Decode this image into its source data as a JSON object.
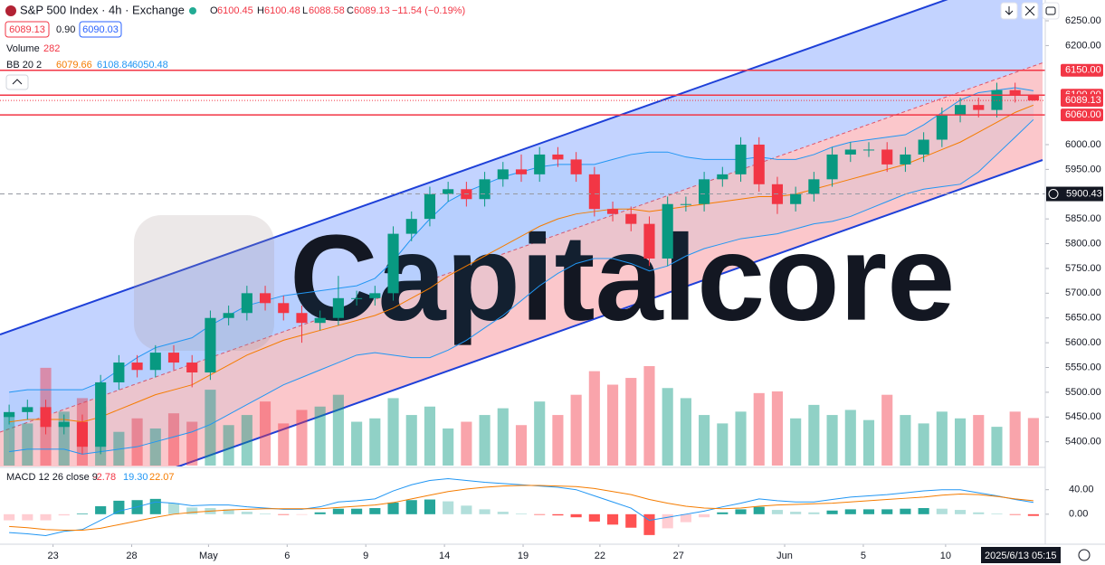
{
  "header": {
    "symbol": "S&P 500 Index · 4h · Exchange",
    "ohlc_labels": [
      "O",
      "H",
      "L",
      "C"
    ],
    "change": "−11.54 (−0.19%)",
    "spread": "0.90",
    "buy": "6090.03"
  },
  "chart_data": [
    {
      "type": "candlestick",
      "watermark": "Capitalcore",
      "up_color": "#089981",
      "down_color": "#f23645",
      "open": [
        5450,
        5460,
        5470,
        5430,
        5440,
        5390,
        5520,
        5560,
        5545,
        5580,
        5560,
        5540,
        5650,
        5660,
        5700,
        5680,
        5660,
        5640,
        5650,
        5690,
        5690,
        5700,
        5820,
        5850,
        5900,
        5910,
        5890,
        5930,
        5950,
        5940,
        5980,
        5970,
        5940,
        5870,
        5860,
        5840,
        5770,
        5880,
        5880,
        5930,
        5940,
        6000,
        5920,
        5880,
        5900,
        5930,
        5980,
        5990,
        5990,
        5960,
        5980,
        6010,
        6060,
        6080,
        6070,
        6110,
        6100.45
      ],
      "high": [
        5475,
        5485,
        5485,
        5455,
        5455,
        5535,
        5575,
        5575,
        5595,
        5595,
        5575,
        5665,
        5675,
        5715,
        5715,
        5695,
        5675,
        5665,
        5735,
        5705,
        5715,
        5835,
        5865,
        5915,
        5925,
        5925,
        5945,
        5965,
        5980,
        5995,
        5995,
        5985,
        5955,
        5885,
        5875,
        5855,
        5895,
        5895,
        5945,
        5955,
        6015,
        6015,
        5935,
        5915,
        5945,
        5995,
        6005,
        6005,
        6005,
        5995,
        6025,
        6075,
        6095,
        6095,
        6125,
        6125,
        6100.48
      ],
      "low": [
        5435,
        5445,
        5415,
        5415,
        5375,
        5375,
        5505,
        5530,
        5530,
        5545,
        5510,
        5525,
        5635,
        5645,
        5665,
        5645,
        5600,
        5625,
        5635,
        5675,
        5675,
        5685,
        5805,
        5835,
        5885,
        5875,
        5875,
        5915,
        5925,
        5925,
        5955,
        5925,
        5855,
        5845,
        5825,
        5755,
        5755,
        5865,
        5865,
        5915,
        5925,
        5905,
        5860,
        5865,
        5885,
        5915,
        5965,
        5975,
        5945,
        5945,
        5965,
        5995,
        6045,
        6055,
        6055,
        6085,
        6088.58
      ],
      "close": [
        5460,
        5470,
        5430,
        5440,
        5390,
        5520,
        5560,
        5545,
        5580,
        5560,
        5540,
        5650,
        5660,
        5700,
        5680,
        5660,
        5640,
        5650,
        5690,
        5690,
        5700,
        5820,
        5850,
        5900,
        5910,
        5890,
        5930,
        5950,
        5940,
        5980,
        5970,
        5940,
        5870,
        5860,
        5840,
        5770,
        5880,
        5880,
        5930,
        5940,
        6000,
        5920,
        5880,
        5900,
        5930,
        5980,
        5990,
        5990,
        5960,
        5980,
        6010,
        6060,
        6080,
        6070,
        6110,
        6100.67,
        6089.13
      ],
      "volume": {
        "name": "Volume",
        "values": [
          300,
          250,
          580,
          320,
          400,
          350,
          200,
          280,
          220,
          310,
          260,
          450,
          240,
          300,
          380,
          250,
          330,
          350,
          420,
          260,
          280,
          400,
          300,
          350,
          220,
          260,
          300,
          340,
          240,
          380,
          300,
          420,
          560,
          480,
          520,
          590,
          460,
          400,
          300,
          250,
          320,
          430,
          440,
          280,
          360,
          300,
          330,
          270,
          420,
          300,
          250,
          320,
          280,
          300,
          230,
          320,
          282
        ]
      },
      "bb": {
        "name": "BB 20 2",
        "series": [
          {
            "name": "middle",
            "color": "#f57c00",
            "values": [
              5440,
              5445,
              5445,
              5445,
              5440,
              5450,
              5465,
              5480,
              5495,
              5505,
              5515,
              5535,
              5555,
              5575,
              5590,
              5605,
              5615,
              5625,
              5635,
              5645,
              5655,
              5670,
              5690,
              5710,
              5735,
              5755,
              5775,
              5795,
              5815,
              5835,
              5850,
              5860,
              5865,
              5870,
              5870,
              5865,
              5870,
              5875,
              5880,
              5885,
              5890,
              5895,
              5895,
              5900,
              5910,
              5920,
              5930,
              5940,
              5950,
              5960,
              5975,
              5990,
              6005,
              6025,
              6045,
              6065,
              6079.66
            ]
          },
          {
            "name": "upper",
            "color": "#2196f3",
            "values": [
              5500,
              5505,
              5505,
              5505,
              5505,
              5520,
              5545,
              5570,
              5590,
              5600,
              5610,
              5635,
              5655,
              5675,
              5685,
              5695,
              5700,
              5705,
              5710,
              5715,
              5730,
              5765,
              5810,
              5850,
              5885,
              5905,
              5920,
              5935,
              5945,
              5955,
              5960,
              5960,
              5960,
              5970,
              5980,
              5985,
              5985,
              5975,
              5970,
              5970,
              5970,
              5975,
              5970,
              5970,
              5980,
              5995,
              6005,
              6010,
              6015,
              6020,
              6040,
              6065,
              6090,
              6105,
              6110,
              6115,
              6108.84
            ]
          },
          {
            "name": "lower",
            "color": "#2196f3",
            "values": [
              5380,
              5385,
              5385,
              5385,
              5375,
              5380,
              5385,
              5390,
              5400,
              5410,
              5420,
              5435,
              5455,
              5475,
              5495,
              5515,
              5530,
              5545,
              5560,
              5575,
              5580,
              5575,
              5570,
              5570,
              5585,
              5605,
              5630,
              5655,
              5685,
              5715,
              5740,
              5760,
              5770,
              5770,
              5760,
              5745,
              5755,
              5775,
              5790,
              5800,
              5810,
              5815,
              5820,
              5830,
              5840,
              5845,
              5855,
              5870,
              5885,
              5900,
              5910,
              5915,
              5920,
              5945,
              5980,
              6015,
              6050.48
            ]
          }
        ]
      },
      "levels": [
        {
          "value": 6150,
          "label": "6150.00"
        },
        {
          "value": 6100,
          "label": "6100.00"
        },
        {
          "value": 6060,
          "label": "6060.00"
        }
      ],
      "crosshair": {
        "value": 5900.43,
        "date": "2025/6/13",
        "time": "05:15"
      },
      "xlim": [
        -0.5,
        56.5
      ],
      "xticks": [
        {
          "value": 2.4,
          "label": "23"
        },
        {
          "value": 6.7,
          "label": "28"
        },
        {
          "value": 10.9,
          "label": "May"
        },
        {
          "value": 15.2,
          "label": "6"
        },
        {
          "value": 19.5,
          "label": "9"
        },
        {
          "value": 23.8,
          "label": "14"
        },
        {
          "value": 28.1,
          "label": "19"
        },
        {
          "value": 32.3,
          "label": "22"
        },
        {
          "value": 36.6,
          "label": "27"
        },
        {
          "value": 42.4,
          "label": "Jun"
        },
        {
          "value": 46.7,
          "label": "5"
        },
        {
          "value": 51.2,
          "label": "10"
        }
      ],
      "ylim": [
        5352,
        6292
      ],
      "yticks": [
        {
          "value": 6250,
          "label": "6250.00"
        },
        {
          "value": 6200,
          "label": "6200.00"
        },
        {
          "value": 6000,
          "label": "6000.00"
        },
        {
          "value": 5950,
          "label": "5950.00"
        },
        {
          "value": 5850,
          "label": "5850.00"
        },
        {
          "value": 5800,
          "label": "5800.00"
        },
        {
          "value": 5750,
          "label": "5750.00"
        },
        {
          "value": 5700,
          "label": "5700.00"
        },
        {
          "value": 5650,
          "label": "5650.00"
        },
        {
          "value": 5600,
          "label": "5600.00"
        },
        {
          "value": 5550,
          "label": "5550.00"
        },
        {
          "value": 5500,
          "label": "5500.00"
        },
        {
          "value": 5450,
          "label": "5450.00"
        },
        {
          "value": 5400,
          "label": "5400.00"
        }
      ]
    },
    {
      "type": "macd",
      "title": "MACD 12 26 close 9",
      "series": [
        {
          "name": "histogram",
          "color": "#f23645",
          "values": [
            -10,
            -10,
            -10,
            -2,
            1,
            13,
            22,
            23,
            25,
            18,
            11,
            10,
            8,
            4,
            1,
            -1,
            -1,
            3,
            9,
            9,
            10,
            19,
            23,
            24,
            21,
            14,
            8,
            4,
            1,
            -1,
            -2,
            -5,
            -12,
            -17,
            -22,
            -34,
            -23,
            -13,
            -5,
            3,
            8,
            12,
            7,
            4,
            3,
            6,
            8,
            8,
            8,
            9,
            10,
            9,
            7,
            3,
            1,
            -1,
            -2.78
          ]
        },
        {
          "name": "macd",
          "color": "#2196f3",
          "values": [
            -30,
            -32,
            -35,
            -28,
            -25,
            -10,
            5,
            12,
            20,
            18,
            14,
            15,
            15,
            12,
            10,
            8,
            8,
            12,
            20,
            22,
            25,
            38,
            48,
            55,
            58,
            55,
            52,
            50,
            48,
            46,
            44,
            40,
            30,
            20,
            10,
            -10,
            -5,
            0,
            5,
            12,
            18,
            25,
            22,
            20,
            20,
            24,
            28,
            30,
            32,
            35,
            38,
            40,
            40,
            35,
            30,
            24,
            19.3
          ],
          "value_labels": [
            null,
            null,
            null,
            null,
            null,
            null,
            null,
            null,
            null,
            null,
            null,
            null,
            null,
            null,
            null,
            null,
            null,
            null,
            null,
            null,
            null,
            null,
            null,
            null,
            null,
            null,
            null,
            null,
            null,
            null,
            null,
            null,
            null,
            null,
            null,
            null,
            null,
            null,
            null,
            null,
            null,
            null,
            null,
            null,
            null,
            null,
            null,
            null,
            null,
            null,
            null,
            null,
            null,
            null,
            null,
            null,
            "19.30"
          ]
        },
        {
          "name": "signal",
          "color": "#f57c00",
          "values": [
            -20,
            -22,
            -25,
            -26,
            -26,
            -23,
            -17,
            -11,
            -5,
            0,
            3,
            5,
            7,
            8,
            9,
            9,
            9,
            9,
            11,
            13,
            15,
            19,
            25,
            31,
            37,
            41,
            44,
            46,
            47,
            47,
            46,
            45,
            42,
            37,
            32,
            24,
            18,
            13,
            10,
            9,
            10,
            13,
            15,
            16,
            17,
            18,
            20,
            22,
            24,
            26,
            28,
            31,
            33,
            32,
            29,
            25,
            22.07
          ]
        }
      ],
      "hist_colors": [
        "#26a69a",
        "#b2dfdb",
        "#ffcdd2",
        "#ff5252"
      ],
      "ylim": [
        -46,
        72
      ],
      "yticks": [
        {
          "value": 40,
          "label": "40.00"
        },
        {
          "value": 0,
          "label": "0.00"
        }
      ]
    }
  ]
}
